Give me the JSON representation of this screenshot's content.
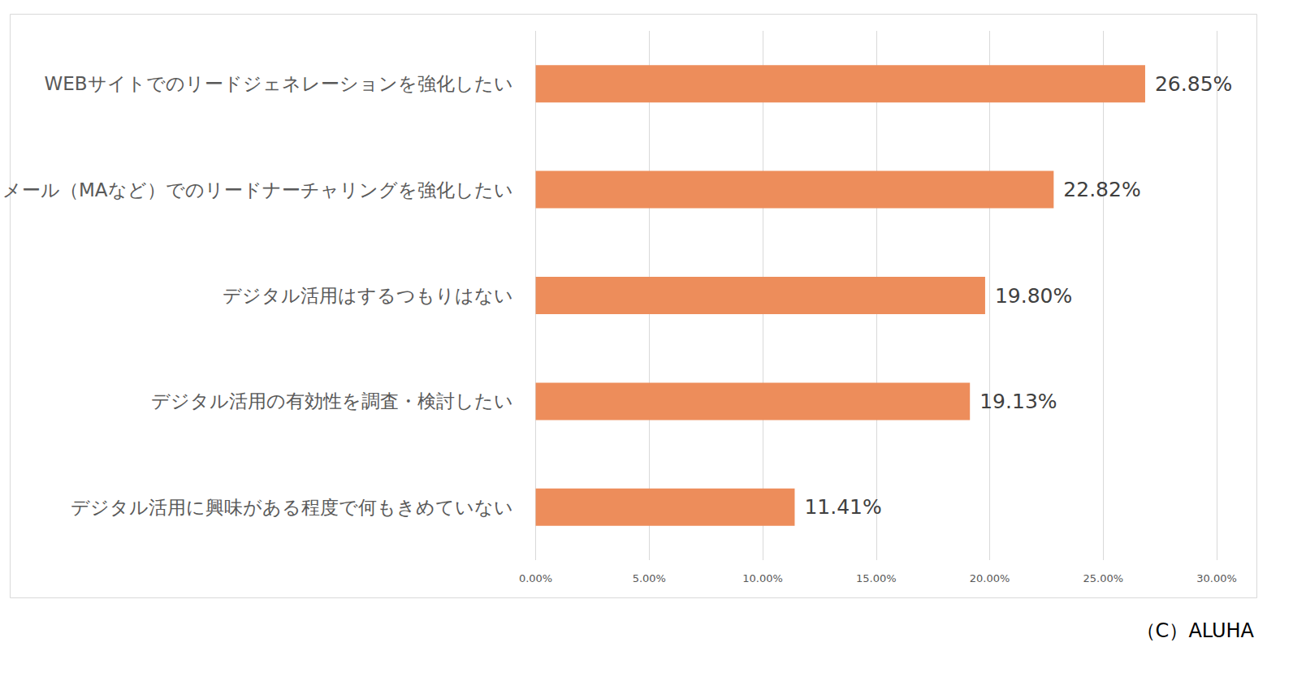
{
  "chart_data": {
    "type": "bar",
    "orientation": "horizontal",
    "categories": [
      "WEBサイトでのリードジェネレーションを強化したい",
      "メール（MAなど）でのリードナーチャリングを強化したい",
      "デジタル活用はするつもりはない",
      "デジタル活用の有効性を調査・検討したい",
      "デジタル活用に興味がある程度で何もきめていない"
    ],
    "values": [
      26.85,
      22.82,
      19.8,
      19.13,
      11.41
    ],
    "value_labels": [
      "26.85%",
      "22.82%",
      "19.80%",
      "19.13%",
      "11.41%"
    ],
    "data_labels": true,
    "color": "#ed8d5b",
    "xlim": [
      0,
      30
    ],
    "xticks": [
      {
        "value": 0,
        "label": "0.00%"
      },
      {
        "value": 5,
        "label": "5.00%"
      },
      {
        "value": 10,
        "label": "10.00%"
      },
      {
        "value": 15,
        "label": "15.00%"
      },
      {
        "value": 20,
        "label": "20.00%"
      },
      {
        "value": 25,
        "label": "25.00%"
      },
      {
        "value": 30,
        "label": "30.00%"
      }
    ],
    "grid": true,
    "annotations": [
      "（C）ALUHA"
    ]
  }
}
